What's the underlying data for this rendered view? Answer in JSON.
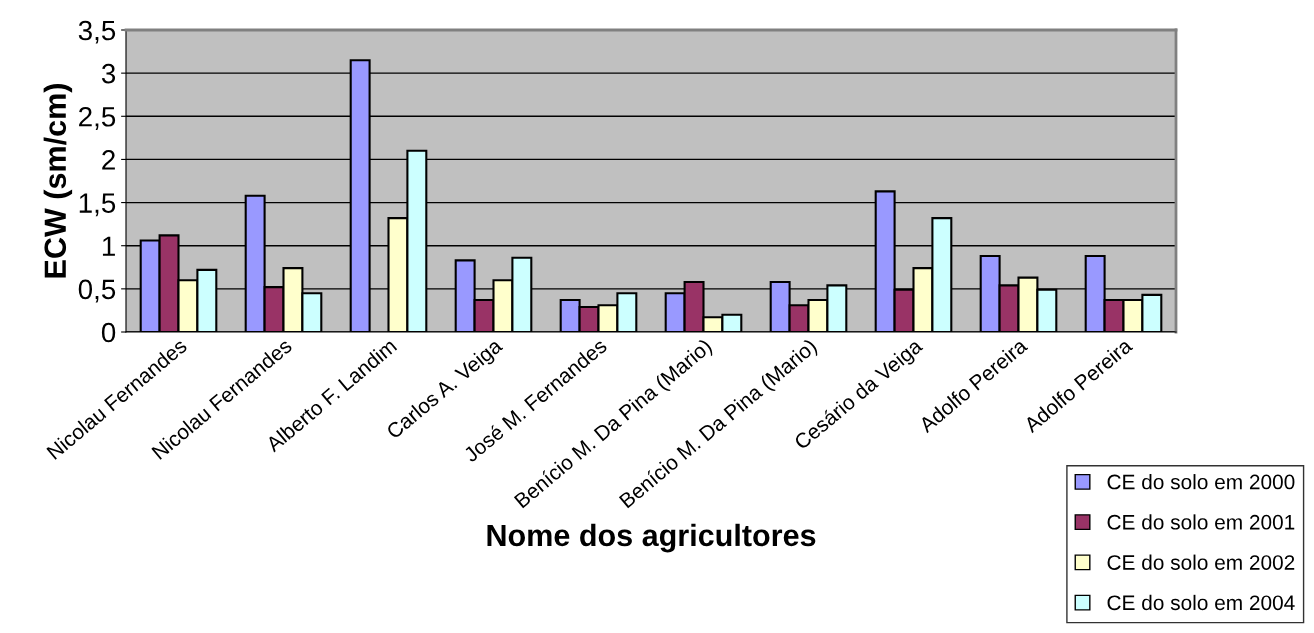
{
  "chart_data": {
    "type": "bar",
    "xlabel": "Nome dos agricultores",
    "ylabel": "ECW (sm/cm)",
    "categories": [
      "Nicolau Fernandes",
      "Nicolau Fernandes",
      "Alberto F. Landim",
      "Carlos A. Veiga",
      "José M. Fernandes",
      "Benício M. Da Pina (Mario)",
      "Benício M. Da Pina (Mario)",
      "Cesário da Veiga",
      "Adolfo Pereira",
      "Adolfo Pereira"
    ],
    "series": [
      {
        "name": "CE do solo em 2000",
        "color": "#9999ff",
        "values": [
          1.06,
          1.58,
          3.15,
          0.83,
          0.37,
          0.45,
          0.58,
          1.63,
          0.88,
          0.88
        ]
      },
      {
        "name": "CE do solo em 2001",
        "color": "#993366",
        "values": [
          1.12,
          0.52,
          null,
          0.37,
          0.29,
          0.58,
          0.31,
          0.49,
          0.54,
          0.37
        ]
      },
      {
        "name": "CE do solo em 2002",
        "color": "#ffffcc",
        "values": [
          0.6,
          0.74,
          1.32,
          0.6,
          0.31,
          0.17,
          0.37,
          0.74,
          0.63,
          0.37
        ]
      },
      {
        "name": "CE do solo em 2004",
        "color": "#ccffff",
        "values": [
          0.72,
          0.45,
          2.1,
          0.86,
          0.45,
          0.2,
          0.54,
          1.32,
          0.49,
          0.43
        ]
      }
    ],
    "ylim": [
      0,
      3.5
    ],
    "yticks": [
      0,
      {
        "value": 0.5,
        "label": "0,5"
      },
      1,
      {
        "value": 1.5,
        "label": "1,5"
      },
      2,
      {
        "value": 2.5,
        "label": "2,5"
      },
      3,
      {
        "value": 3.5,
        "label": "3,5"
      }
    ],
    "grid": "y",
    "legend": "bottom right"
  }
}
